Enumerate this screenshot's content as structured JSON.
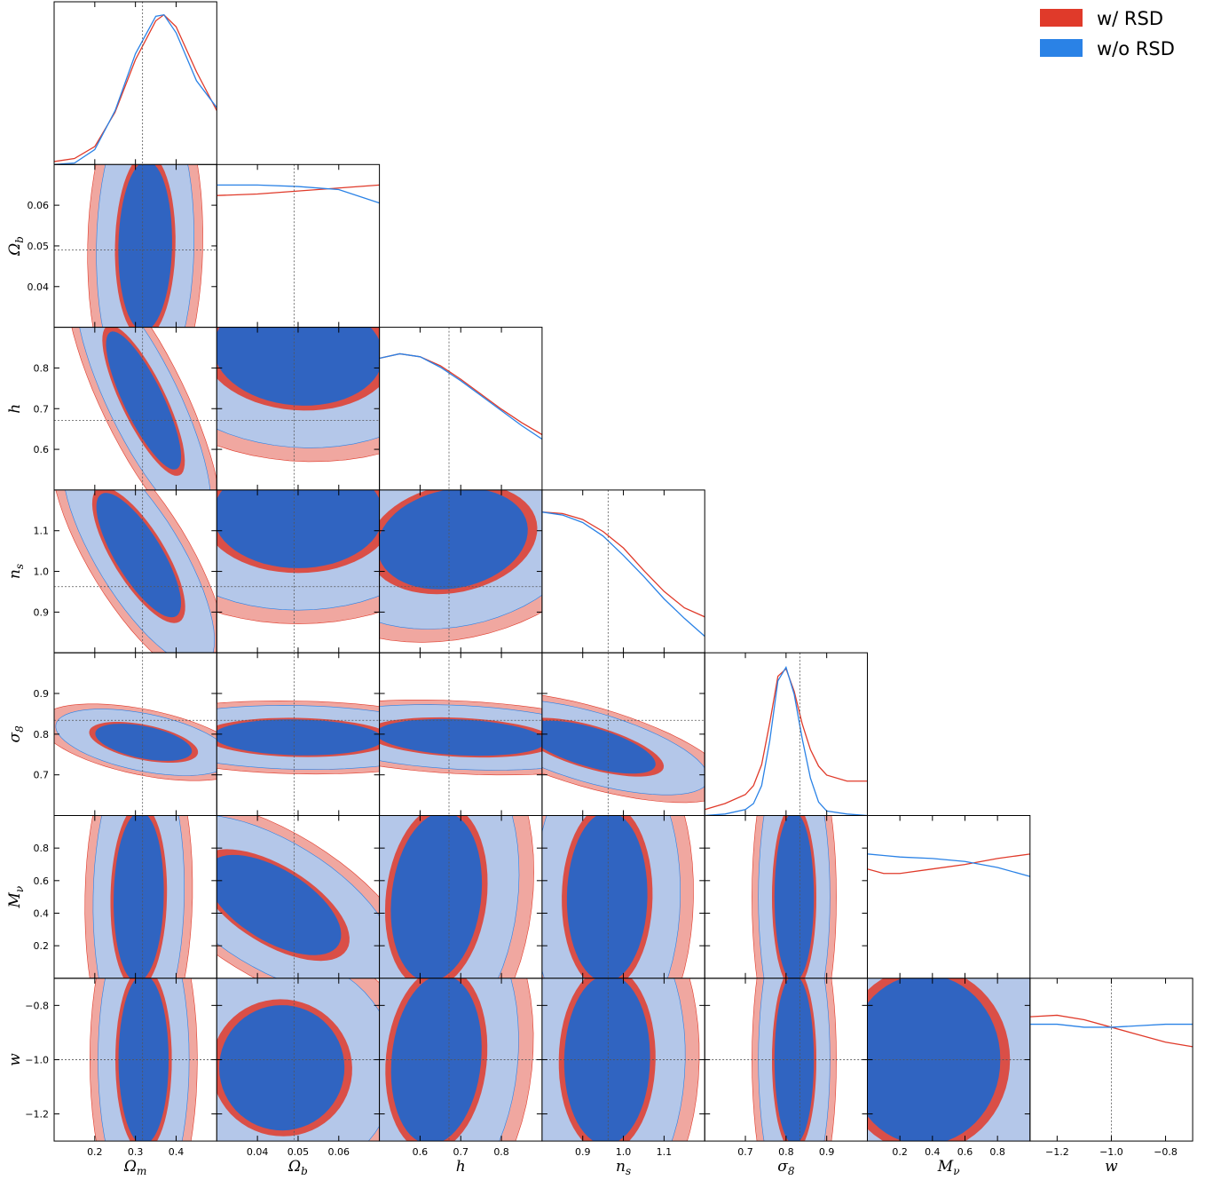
{
  "chart_data": {
    "type": "corner",
    "title": "",
    "parameters": [
      {
        "key": "Om",
        "label": "Ω",
        "sub": "m",
        "range": [
          0.1,
          0.5
        ],
        "ticks": [
          0.2,
          0.3,
          0.4
        ],
        "tick_labels": [
          "0.2",
          "0.3",
          "0.4"
        ],
        "truth": 0.3175
      },
      {
        "key": "Ob",
        "label": "Ω",
        "sub": "b",
        "range": [
          0.03,
          0.07
        ],
        "ticks": [
          0.04,
          0.05,
          0.06
        ],
        "tick_labels": [
          "0.04",
          "0.05",
          "0.06"
        ],
        "truth": 0.049
      },
      {
        "key": "h",
        "label": "h",
        "sub": "",
        "range": [
          0.5,
          0.9
        ],
        "ticks": [
          0.6,
          0.7,
          0.8
        ],
        "tick_labels": [
          "0.6",
          "0.7",
          "0.8"
        ],
        "truth": 0.6711
      },
      {
        "key": "ns",
        "label": "n",
        "sub": "s",
        "range": [
          0.8,
          1.2
        ],
        "ticks": [
          0.9,
          1.0,
          1.1
        ],
        "tick_labels": [
          "0.9",
          "1.0",
          "1.1"
        ],
        "truth": 0.9624
      },
      {
        "key": "s8",
        "label": "σ",
        "sub": "8",
        "range": [
          0.6,
          1.0
        ],
        "ticks": [
          0.7,
          0.8,
          0.9
        ],
        "tick_labels": [
          "0.7",
          "0.8",
          "0.9"
        ],
        "truth": 0.834
      },
      {
        "key": "Mnu",
        "label": "M",
        "sub": "ν",
        "range": [
          0.0,
          1.0
        ],
        "ticks": [
          0.2,
          0.4,
          0.6,
          0.8
        ],
        "tick_labels": [
          "0.2",
          "0.4",
          "0.6",
          "0.8"
        ],
        "truth": null
      },
      {
        "key": "w",
        "label": "w",
        "sub": "",
        "range": [
          -1.3,
          -0.7
        ],
        "ticks": [
          -1.2,
          -1.0,
          -0.8
        ],
        "tick_labels": [
          "−1.2",
          "−1.0",
          "−0.8"
        ],
        "truth": -1.0
      }
    ],
    "series": [
      {
        "name": "w/ RSD",
        "color": "#e03a2a",
        "fill_inner": "#e03a2a",
        "fill_outer": "#f0a7a0"
      },
      {
        "name": "w/o RSD",
        "color": "#2a82e6",
        "fill_inner": "#2a82e6",
        "fill_outer": "#a9cdf6"
      }
    ],
    "legend_position": "top-right",
    "marginals": [
      {
        "param": "Om",
        "series": [
          {
            "x": [
              0.1,
              0.15,
              0.2,
              0.25,
              0.3,
              0.35,
              0.37,
              0.4,
              0.45,
              0.5
            ],
            "y": [
              0.02,
              0.04,
              0.12,
              0.35,
              0.7,
              0.96,
              1.0,
              0.92,
              0.62,
              0.36
            ]
          },
          {
            "x": [
              0.1,
              0.15,
              0.2,
              0.25,
              0.3,
              0.35,
              0.37,
              0.4,
              0.45,
              0.5
            ],
            "y": [
              0.0,
              0.01,
              0.1,
              0.36,
              0.74,
              0.99,
              1.0,
              0.88,
              0.56,
              0.38
            ]
          }
        ]
      },
      {
        "param": "Ob",
        "series": [
          {
            "x": [
              0.03,
              0.04,
              0.05,
              0.06,
              0.07
            ],
            "y": [
              0.88,
              0.89,
              0.91,
              0.93,
              0.95
            ]
          },
          {
            "x": [
              0.03,
              0.04,
              0.05,
              0.06,
              0.07
            ],
            "y": [
              0.95,
              0.95,
              0.94,
              0.92,
              0.83
            ]
          }
        ]
      },
      {
        "param": "h",
        "series": [
          {
            "x": [
              0.5,
              0.55,
              0.6,
              0.65,
              0.7,
              0.75,
              0.8,
              0.85,
              0.9
            ],
            "y": [
              0.88,
              0.91,
              0.89,
              0.83,
              0.74,
              0.64,
              0.54,
              0.45,
              0.37
            ]
          },
          {
            "x": [
              0.5,
              0.55,
              0.6,
              0.65,
              0.7,
              0.75,
              0.8,
              0.85,
              0.9
            ],
            "y": [
              0.88,
              0.91,
              0.89,
              0.82,
              0.73,
              0.63,
              0.53,
              0.43,
              0.34
            ]
          }
        ]
      },
      {
        "param": "ns",
        "series": [
          {
            "x": [
              0.8,
              0.85,
              0.9,
              0.95,
              1.0,
              1.05,
              1.1,
              1.15,
              1.2
            ],
            "y": [
              0.94,
              0.93,
              0.89,
              0.81,
              0.7,
              0.55,
              0.41,
              0.3,
              0.24
            ]
          },
          {
            "x": [
              0.8,
              0.85,
              0.9,
              0.95,
              1.0,
              1.05,
              1.1,
              1.15,
              1.2
            ],
            "y": [
              0.94,
              0.92,
              0.87,
              0.78,
              0.65,
              0.51,
              0.36,
              0.23,
              0.11
            ]
          }
        ]
      },
      {
        "param": "s8",
        "series": [
          {
            "x": [
              0.6,
              0.65,
              0.7,
              0.72,
              0.74,
              0.76,
              0.78,
              0.8,
              0.82,
              0.84,
              0.86,
              0.88,
              0.9,
              0.95,
              1.0
            ],
            "y": [
              0.04,
              0.08,
              0.14,
              0.2,
              0.34,
              0.62,
              0.93,
              0.98,
              0.83,
              0.61,
              0.44,
              0.33,
              0.27,
              0.23,
              0.23
            ]
          },
          {
            "x": [
              0.6,
              0.65,
              0.7,
              0.72,
              0.74,
              0.76,
              0.78,
              0.8,
              0.82,
              0.84,
              0.86,
              0.88,
              0.9,
              0.95,
              1.0
            ],
            "y": [
              0.0,
              0.01,
              0.04,
              0.08,
              0.2,
              0.5,
              0.9,
              0.99,
              0.81,
              0.51,
              0.25,
              0.09,
              0.03,
              0.01,
              0.0
            ]
          }
        ]
      },
      {
        "param": "Mnu",
        "series": [
          {
            "x": [
              0.0,
              0.1,
              0.2,
              0.4,
              0.6,
              0.8,
              1.0
            ],
            "y": [
              0.73,
              0.7,
              0.7,
              0.73,
              0.76,
              0.8,
              0.83
            ]
          },
          {
            "x": [
              0.0,
              0.1,
              0.2,
              0.4,
              0.6,
              0.8,
              1.0
            ],
            "y": [
              0.83,
              0.82,
              0.81,
              0.8,
              0.78,
              0.74,
              0.68
            ]
          }
        ]
      },
      {
        "param": "w",
        "series": [
          {
            "x": [
              -1.3,
              -1.2,
              -1.1,
              -1.0,
              -0.9,
              -0.8,
              -0.7
            ],
            "y": [
              0.83,
              0.84,
              0.81,
              0.76,
              0.71,
              0.66,
              0.63
            ]
          },
          {
            "x": [
              -1.3,
              -1.2,
              -1.1,
              -1.0,
              -0.9,
              -0.8,
              -0.7
            ],
            "y": [
              0.78,
              0.78,
              0.76,
              0.76,
              0.77,
              0.78,
              0.78
            ]
          }
        ]
      }
    ]
  }
}
